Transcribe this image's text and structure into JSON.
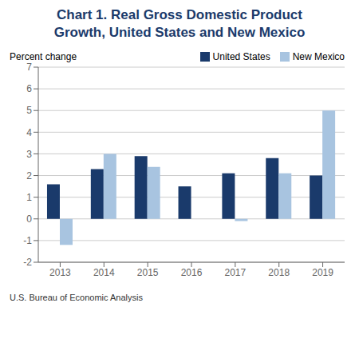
{
  "chart_data": {
    "type": "bar",
    "title": "Chart 1. Real Gross Domestic Product\nGrowth, United States and New Mexico",
    "y_label": "Percent change",
    "footer": "U.S. Bureau of Economic Analysis",
    "categories": [
      "2013",
      "2014",
      "2015",
      "2016",
      "2017",
      "2018",
      "2019"
    ],
    "series": [
      {
        "name": "United States",
        "color": "#1a3a6b",
        "values": [
          1.6,
          2.3,
          2.9,
          1.5,
          2.1,
          2.8,
          2.0
        ]
      },
      {
        "name": "New Mexico",
        "color": "#a8c4e0",
        "values": [
          -1.2,
          3.0,
          2.4,
          null,
          -0.1,
          2.1,
          5.0
        ]
      }
    ],
    "title_color": "#1a3a6b",
    "ylim": [
      -2,
      7
    ],
    "yticks": [
      -2,
      -1,
      0,
      1,
      2,
      3,
      4,
      5,
      6,
      7
    ],
    "grid": true,
    "legend": "upper right"
  }
}
